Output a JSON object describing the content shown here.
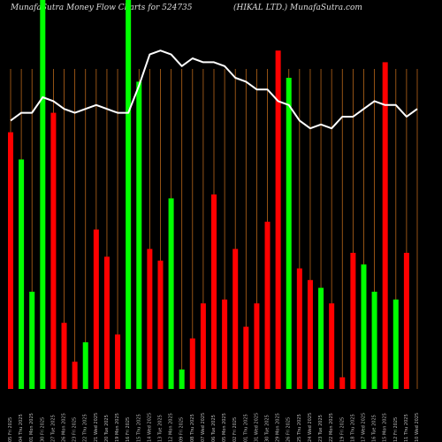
{
  "title_left": "MunafaSutra  Money Flow  Charts for 524735",
  "title_right": "(HIKAL  LTD.)  MunafaSutra.com",
  "colors": {
    "background": "#000000",
    "grid": "#b8661a",
    "up": "#00ff00",
    "down": "#ff0000",
    "line": "#ffffff"
  },
  "chart_data": {
    "type": "bar",
    "grid": true,
    "legend": "none",
    "categories": [
      "05 Fri 2025",
      "04 Thu 2025",
      "01 Mon 2025",
      "30 Fri 2025",
      "27 Tue 2025",
      "26 Mon 2025",
      "23 Fri 2025",
      "22 Thu 2025",
      "21 Wed 2025",
      "20 Tue 2025",
      "19 Mon 2025",
      "16 Fri 2025",
      "15 Thu 2025",
      "14 Wed 2025",
      "13 Tue 2025",
      "12 Mon 2025",
      "09 Fri 2025",
      "08 Thu 2025",
      "07 Wed 2025",
      "06 Tue 2025",
      "05 Mon 2025",
      "02 Fri 2025",
      "01 Thu 2025",
      "31 Wed 2025",
      "30 Tue 2025",
      "29 Mon 2025",
      "26 Fri 2025",
      "25 Thu 2025",
      "24 Wed 2025",
      "23 Tue 2025",
      "22 Mon 2025",
      "19 Fri 2025",
      "18 Thu 2025",
      "17 Wed 2025",
      "16 Tue 2025",
      "15 Mon 2025",
      "12 Fri 2025",
      "11 Thu 2025",
      "10 Wed 2025"
    ],
    "bar_dirs": [
      "down",
      "up",
      "up",
      "up",
      "down",
      "down",
      "down",
      "up",
      "down",
      "down",
      "down",
      "up",
      "up",
      "down",
      "down",
      "up",
      "up",
      "down",
      "down",
      "down",
      "down",
      "down",
      "down",
      "down",
      "down",
      "down",
      "up",
      "down",
      "down",
      "up",
      "down",
      "down",
      "down",
      "up",
      "up",
      "down",
      "up",
      "down",
      "down"
    ],
    "bar_values": [
      0.66,
      0.59,
      0.25,
      1.0,
      0.71,
      0.17,
      0.07,
      0.12,
      0.41,
      0.34,
      0.14,
      1.0,
      0.79,
      0.36,
      0.33,
      0.49,
      0.05,
      0.13,
      0.22,
      0.5,
      0.23,
      0.36,
      0.16,
      0.22,
      0.43,
      0.87,
      0.8,
      0.31,
      0.28,
      0.26,
      0.22,
      0.03,
      0.35,
      0.32,
      0.25,
      0.84,
      0.23,
      0.35,
      0.0
    ],
    "line_values": [
      0.69,
      0.71,
      0.71,
      0.75,
      0.74,
      0.72,
      0.71,
      0.72,
      0.73,
      0.72,
      0.71,
      0.71,
      0.78,
      0.86,
      0.87,
      0.86,
      0.83,
      0.85,
      0.84,
      0.84,
      0.83,
      0.8,
      0.79,
      0.77,
      0.77,
      0.74,
      0.73,
      0.69,
      0.67,
      0.68,
      0.67,
      0.7,
      0.7,
      0.72,
      0.74,
      0.73,
      0.73,
      0.7,
      0.72
    ]
  }
}
